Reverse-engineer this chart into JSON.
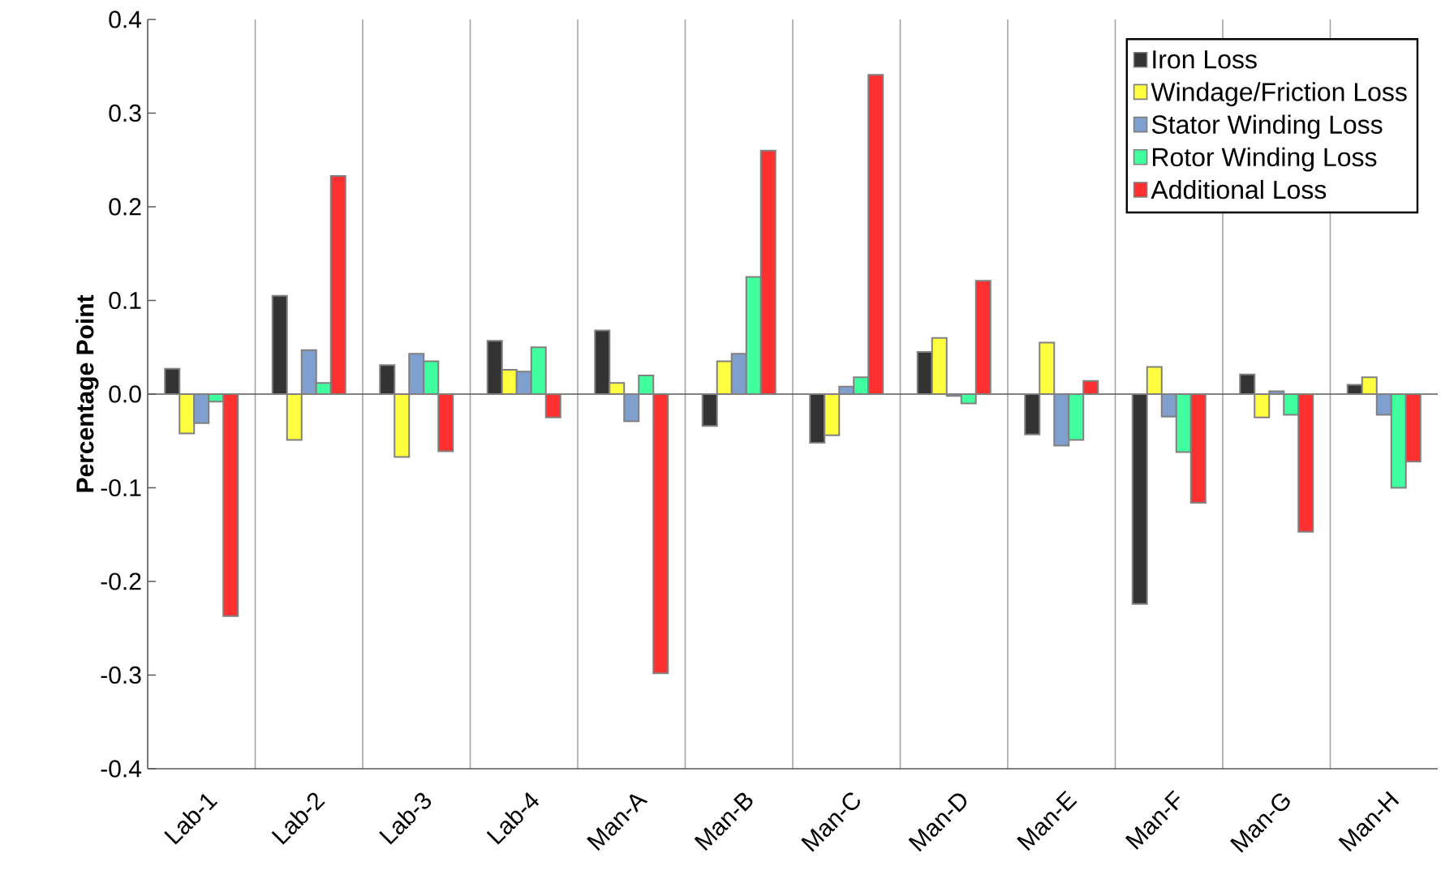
{
  "chart_data": {
    "type": "bar",
    "ylabel": "Percentage Point",
    "categories": [
      "Lab-1",
      "Lab-2",
      "Lab-3",
      "Lab-4",
      "Man-A",
      "Man-B",
      "Man-C",
      "Man-D",
      "Man-E",
      "Man-F",
      "Man-G",
      "Man-H"
    ],
    "series": [
      {
        "name": "Iron Loss",
        "color": "#333333",
        "values": [
          0.027,
          0.105,
          0.031,
          0.057,
          0.068,
          -0.034,
          -0.052,
          0.045,
          -0.043,
          -0.224,
          0.021,
          0.01
        ]
      },
      {
        "name": "Windage/Friction Loss",
        "color": "#ffff40",
        "values": [
          -0.042,
          -0.049,
          -0.067,
          0.026,
          0.012,
          0.035,
          -0.044,
          0.06,
          0.055,
          0.029,
          -0.025,
          0.018
        ]
      },
      {
        "name": "Stator Winding Loss",
        "color": "#7f9fcf",
        "values": [
          -0.031,
          0.047,
          0.043,
          0.024,
          -0.029,
          0.043,
          0.008,
          -0.002,
          -0.055,
          -0.024,
          0.003,
          -0.022
        ]
      },
      {
        "name": "Rotor Winding Loss",
        "color": "#40ff9f",
        "values": [
          -0.008,
          0.012,
          0.035,
          0.05,
          0.02,
          0.125,
          0.018,
          -0.01,
          -0.049,
          -0.062,
          -0.022,
          -0.1
        ]
      },
      {
        "name": "Additional Loss",
        "color": "#ff3030",
        "values": [
          -0.237,
          0.233,
          -0.061,
          -0.025,
          -0.298,
          0.26,
          0.341,
          0.121,
          0.014,
          -0.116,
          -0.147,
          -0.072
        ]
      }
    ],
    "ylim": [
      -0.4,
      0.4
    ],
    "yticks": [
      -0.4,
      -0.3,
      -0.2,
      -0.1,
      {
        "value": 0,
        "label": "0.0"
      },
      0.1,
      0.2,
      0.3,
      0.4
    ],
    "grid": "x",
    "legend": "top right"
  }
}
